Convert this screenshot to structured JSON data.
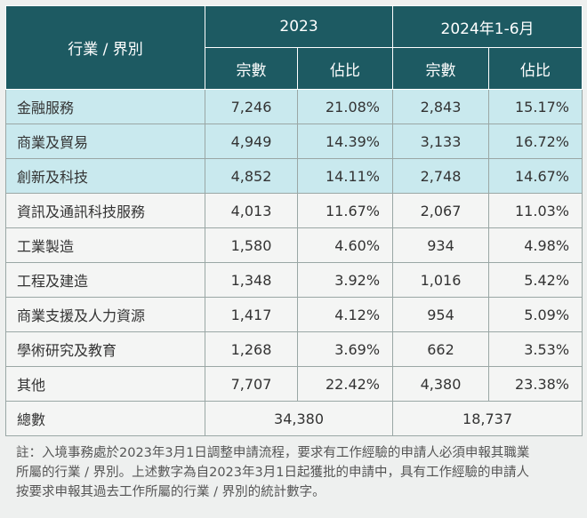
{
  "header": {
    "category_label": "行業 / 界別",
    "period_2023": "2023",
    "period_2024": "2024年1-6月",
    "cases_label": "宗數",
    "share_label": "佔比"
  },
  "rows": [
    {
      "category": "金融服務",
      "cases_2023": "7,246",
      "share_2023": "21.08%",
      "cases_2024": "2,843",
      "share_2024": "15.17%"
    },
    {
      "category": "商業及貿易",
      "cases_2023": "4,949",
      "share_2023": "14.39%",
      "cases_2024": "3,133",
      "share_2024": "16.72%"
    },
    {
      "category": "創新及科技",
      "cases_2023": "4,852",
      "share_2023": "14.11%",
      "cases_2024": "2,748",
      "share_2024": "14.67%"
    },
    {
      "category": "資訊及通訊科技服務",
      "cases_2023": "4,013",
      "share_2023": "11.67%",
      "cases_2024": "2,067",
      "share_2024": "11.03%"
    },
    {
      "category": "工業製造",
      "cases_2023": "1,580",
      "share_2023": "4.60%",
      "cases_2024": "934",
      "share_2024": "4.98%"
    },
    {
      "category": "工程及建造",
      "cases_2023": "1,348",
      "share_2023": "3.92%",
      "cases_2024": "1,016",
      "share_2024": "5.42%"
    },
    {
      "category": "商業支援及人力資源",
      "cases_2023": "1,417",
      "share_2023": "4.12%",
      "cases_2024": "954",
      "share_2024": "5.09%"
    },
    {
      "category": "學術研究及教育",
      "cases_2023": "1,268",
      "share_2023": "3.69%",
      "cases_2024": "662",
      "share_2024": "3.53%"
    },
    {
      "category": "其他",
      "cases_2023": "7,707",
      "share_2023": "22.42%",
      "cases_2024": "4,380",
      "share_2024": "23.38%"
    }
  ],
  "total": {
    "label": "總數",
    "total_2023": "34,380",
    "total_2024": "18,737"
  },
  "note": {
    "line1": "註：入境事務處於2023年3月1日調整申請流程，要求有工作經驗的申請人必須申報其職業",
    "line2": "所屬的行業 / 界別。上述數字為自2023年3月1日起獲批的申請中，具有工作經驗的申請人",
    "line3": "按要求申報其過去工作所屬的行業 / 界別的統計數字。"
  },
  "colors": {
    "header_bg": "#1d5a62",
    "highlight_row": "#c9e9ee",
    "plain_row": "#f4f5f4"
  }
}
